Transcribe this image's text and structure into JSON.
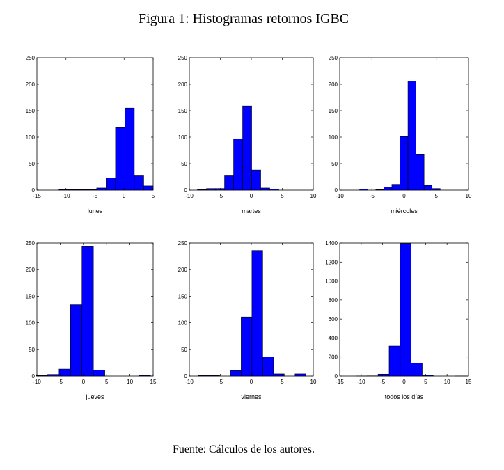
{
  "title": "Figura 1: Histogramas retornos IGBC",
  "chart_data": [
    {
      "type": "histogram",
      "xlabel": "lunes",
      "color": "#0000ff",
      "bins": [
        -11.2,
        -9.58,
        -7.96,
        -6.34,
        -4.72,
        -3.1,
        -1.48,
        0.14,
        1.76,
        3.38,
        5
      ],
      "counts": [
        1,
        1,
        1,
        1,
        4,
        23,
        118,
        155,
        27,
        8
      ],
      "xlim": [
        -15,
        5
      ],
      "xticks": [
        -15,
        -10,
        -5,
        0,
        5
      ],
      "ylim": [
        0,
        250
      ],
      "yticks": [
        0,
        50,
        100,
        150,
        200,
        250
      ]
    },
    {
      "type": "histogram",
      "xlabel": "martes",
      "color": "#0000ff",
      "bins": [
        -8.7,
        -7.24,
        -5.78,
        -4.32,
        -2.86,
        -1.4,
        0.06,
        1.52,
        2.98,
        4.44,
        5.9
      ],
      "counts": [
        1,
        3,
        3,
        27,
        97,
        159,
        38,
        4,
        2,
        0
      ],
      "xlim": [
        -10,
        10
      ],
      "xticks": [
        -10,
        -5,
        0,
        5,
        10
      ],
      "ylim": [
        0,
        250
      ],
      "yticks": [
        0,
        50,
        100,
        150,
        200,
        250
      ]
    },
    {
      "type": "histogram",
      "xlabel": "miércoles",
      "color": "#0000ff",
      "bins": [
        -6.9,
        -5.65,
        -4.4,
        -3.15,
        -1.9,
        -0.65,
        0.6,
        1.85,
        3.1,
        4.35,
        5.6
      ],
      "counts": [
        2,
        0,
        1,
        6,
        11,
        101,
        206,
        68,
        9,
        3
      ],
      "xlim": [
        -10,
        10
      ],
      "xticks": [
        -10,
        -5,
        0,
        5,
        10
      ],
      "ylim": [
        0,
        250
      ],
      "yticks": [
        0,
        50,
        100,
        150,
        200,
        250
      ]
    },
    {
      "type": "histogram",
      "xlabel": "jueves",
      "color": "#0000ff",
      "bins": [
        -10.15,
        -7.69,
        -5.23,
        -2.77,
        -0.31,
        2.15,
        4.61,
        7.07,
        9.53,
        11.99,
        14.45
      ],
      "counts": [
        1,
        3,
        13,
        134,
        243,
        11,
        0,
        0,
        0,
        1
      ],
      "xlim": [
        -10,
        15
      ],
      "xticks": [
        -10,
        -5,
        0,
        5,
        10,
        15
      ],
      "ylim": [
        0,
        250
      ],
      "yticks": [
        0,
        50,
        100,
        150,
        200,
        250
      ]
    },
    {
      "type": "histogram",
      "xlabel": "viernes",
      "color": "#0000ff",
      "bins": [
        -8.6,
        -6.86,
        -5.12,
        -3.38,
        -1.64,
        0.1,
        1.84,
        3.58,
        5.32,
        7.06,
        8.8
      ],
      "counts": [
        1,
        1,
        0,
        10,
        111,
        236,
        36,
        4,
        0,
        4
      ],
      "xlim": [
        -10,
        10
      ],
      "xticks": [
        -10,
        -5,
        0,
        5,
        10
      ],
      "ylim": [
        0,
        250
      ],
      "yticks": [
        0,
        50,
        100,
        150,
        200,
        250
      ]
    },
    {
      "type": "histogram",
      "xlabel": "todos los días",
      "color": "#0000ff",
      "bins": [
        -11.2,
        -8.63,
        -6.06,
        -3.49,
        -0.92,
        1.65,
        4.22,
        6.79,
        9.36,
        11.93,
        14.5
      ],
      "counts": [
        1,
        2,
        20,
        315,
        1395,
        135,
        8,
        0,
        0,
        1
      ],
      "xlim": [
        -15,
        15
      ],
      "xticks": [
        -15,
        -10,
        -5,
        0,
        5,
        10,
        15
      ],
      "ylim": [
        0,
        1400
      ],
      "yticks": [
        0,
        200,
        400,
        600,
        800,
        1000,
        1200,
        1400
      ]
    }
  ],
  "source": "Fuente: Cálculos de los autores."
}
